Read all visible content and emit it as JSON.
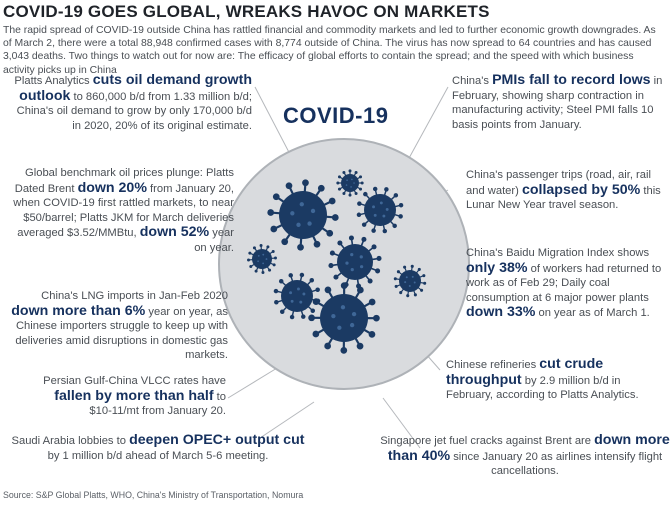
{
  "title": "COVID-19 GOES GLOBAL, WREAKS HAVOC ON MARKETS",
  "intro": "The rapid spread of COVID-19 outside China has rattled financial and commodity markets and led to further economic growth downgrades. As of March 2, there were a total 88,948 confirmed cases with 8,774 outside of China. The virus has now spread to 64 countries and has caused 3,043 deaths. Two things to watch out for now are: The efficacy of global efforts to contain the spread; and the speed with which business activity picks up in China",
  "center_label": "COVID-19",
  "notes": {
    "oil_demand": {
      "a": "Platts Analytics ",
      "b": "cuts oil demand growth outlook",
      "c": " to 860,000 b/d from 1.33 million b/d; China's oil demand to grow by only 170,000 b/d in 2020, 20% of its original estimate."
    },
    "oil_prices": {
      "a": "Global benchmark oil prices plunge: Platts Dated Brent ",
      "b": "down 20%",
      "c": " from January 20, when COVID-19 first rattled markets, to near $50/barrel; Platts JKM for March deliveries averaged $3.52/MMBtu, ",
      "d": "down 52%",
      "e": " year on year."
    },
    "lng": {
      "a": "China's LNG imports in Jan-Feb 2020 ",
      "b": "down more than 6%",
      "c": " year on year, as Chinese importers struggle to keep up with deliveries amid disruptions in domestic gas markets."
    },
    "vlcc": {
      "a": "Persian Gulf-China VLCC rates have ",
      "b": "fallen by more than half",
      "c": " to $10-11/mt from January 20."
    },
    "opec": {
      "a": "Saudi Arabia lobbies to ",
      "b": "deepen OPEC+ output cut",
      "c": " by 1 million b/d ahead of March 5-6 meeting."
    },
    "pmi": {
      "a": "China's ",
      "b": "PMIs fall to record lows",
      "c": " in February, showing sharp contraction in manufacturing activity; Steel PMI falls 10 basis points from January."
    },
    "trips": {
      "a": "China's passenger trips (road, air, rail and water) ",
      "b": "collapsed by 50%",
      "c": " this Lunar New Year travel season."
    },
    "baidu": {
      "a": "China's Baidu Migration Index shows ",
      "b": "only 38%",
      "c": " of workers had returned to work as of Feb 29; Daily coal consumption at 6 major power plants ",
      "d": "down 33%",
      "e": " on year as of March 1."
    },
    "refineries": {
      "a": "Chinese refineries ",
      "b": "cut crude throughput",
      "c": " by 2.9 million b/d in February, according to Platts Analytics."
    },
    "jet": {
      "a": "Singapore jet fuel cracks against Brent are ",
      "b": "down more than 40%",
      "c": " since January 20 as airlines intensify flight cancellations."
    }
  },
  "source": "Source: S&P Global Platts, WHO, China's Ministry of Transportation, Nomura",
  "colors": {
    "navy": "#16315e",
    "virus": "#1b3a63",
    "circle_fill": "#d9dbde",
    "circle_stroke": "#aeb2b7",
    "line": "#b5b8bc"
  }
}
